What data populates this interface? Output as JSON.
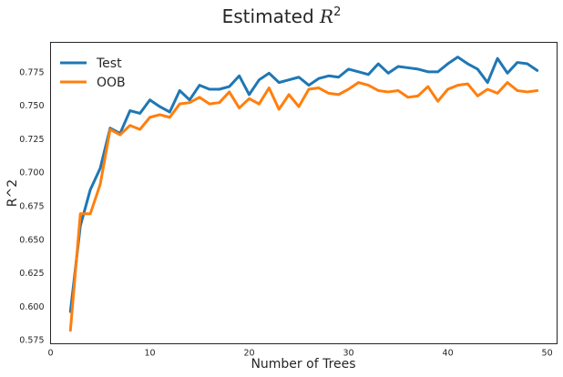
{
  "chart_data": {
    "type": "line",
    "title_text": "Estimated ",
    "title_math": "R",
    "title_sup": "2",
    "xlabel": "Number of Trees",
    "ylabel": "R^2",
    "xlim": [
      0,
      51
    ],
    "ylim": [
      0.572,
      0.797
    ],
    "xticks": [
      0,
      10,
      20,
      30,
      40,
      50
    ],
    "yticks": [
      0.575,
      0.6,
      0.625,
      0.65,
      0.675,
      0.7,
      0.725,
      0.75,
      0.775
    ],
    "ytick_labels": [
      "0.575",
      "0.600",
      "0.625",
      "0.650",
      "0.675",
      "0.700",
      "0.725",
      "0.750",
      "0.775"
    ],
    "grid": false,
    "legend_position": "top-left",
    "x": [
      2,
      3,
      4,
      5,
      6,
      7,
      8,
      9,
      10,
      11,
      12,
      13,
      14,
      15,
      16,
      17,
      18,
      19,
      20,
      21,
      22,
      23,
      24,
      25,
      26,
      27,
      28,
      29,
      30,
      31,
      32,
      33,
      34,
      35,
      36,
      37,
      38,
      39,
      40,
      41,
      42,
      43,
      44,
      45,
      46,
      47,
      48,
      49
    ],
    "series": [
      {
        "name": "Test",
        "color": "#1f77b4",
        "values": [
          0.596,
          0.66,
          0.687,
          0.703,
          0.733,
          0.729,
          0.746,
          0.744,
          0.754,
          0.749,
          0.745,
          0.761,
          0.754,
          0.765,
          0.762,
          0.762,
          0.764,
          0.772,
          0.758,
          0.769,
          0.774,
          0.767,
          0.769,
          0.771,
          0.765,
          0.77,
          0.772,
          0.771,
          0.777,
          0.775,
          0.773,
          0.781,
          0.774,
          0.779,
          0.778,
          0.777,
          0.775,
          0.775,
          0.781,
          0.786,
          0.781,
          0.777,
          0.767,
          0.785,
          0.774,
          0.782,
          0.781,
          0.776
        ]
      },
      {
        "name": "OOB",
        "color": "#ff7f0e",
        "values": [
          0.582,
          0.669,
          0.669,
          0.691,
          0.732,
          0.728,
          0.735,
          0.732,
          0.741,
          0.743,
          0.741,
          0.751,
          0.752,
          0.756,
          0.751,
          0.752,
          0.76,
          0.748,
          0.755,
          0.751,
          0.763,
          0.747,
          0.758,
          0.749,
          0.762,
          0.763,
          0.759,
          0.758,
          0.762,
          0.767,
          0.765,
          0.761,
          0.76,
          0.761,
          0.756,
          0.757,
          0.764,
          0.753,
          0.762,
          0.765,
          0.766,
          0.757,
          0.762,
          0.759,
          0.767,
          0.761,
          0.76,
          0.761
        ]
      }
    ]
  }
}
